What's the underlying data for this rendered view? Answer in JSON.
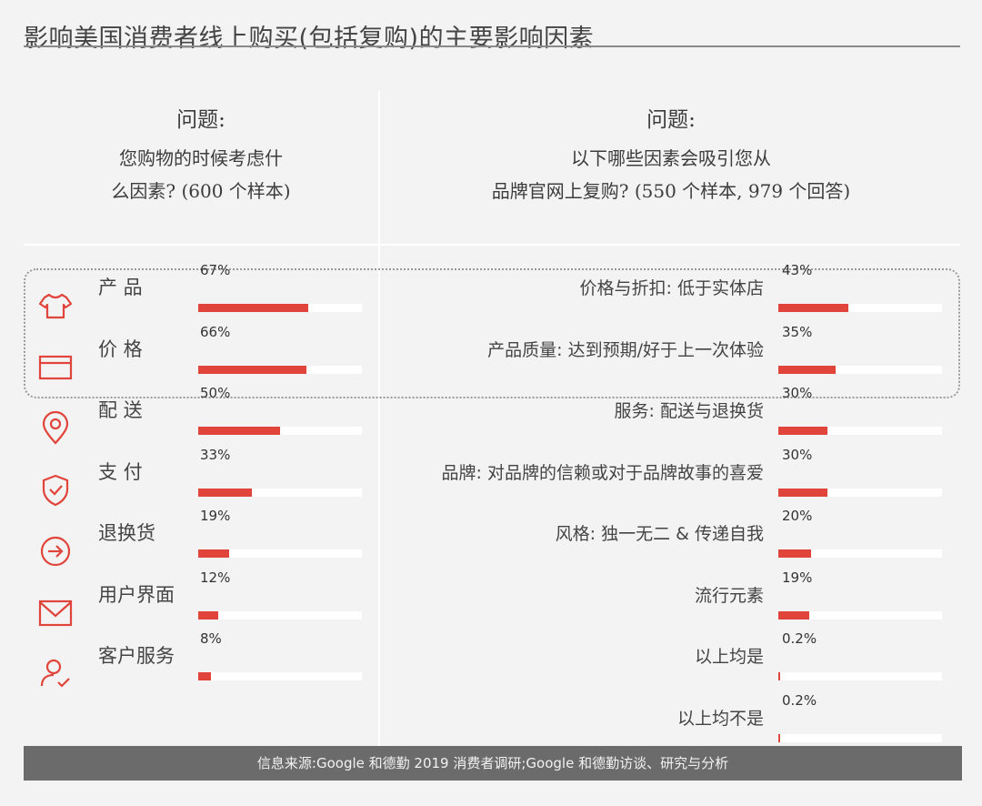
{
  "title": "影响美国消费者线上购买(包括复购)的主要影响因素",
  "colors": {
    "accent": "#e0443a",
    "background": "#f3f3f3",
    "footer_bg": "#6b6b6b"
  },
  "left_question": {
    "label": "问题:",
    "line1": "您购物的时候考虑什",
    "line2": "么因素? (600 个样本)"
  },
  "right_question": {
    "label": "问题:",
    "line1": "以下哪些因素会吸引您从",
    "line2": "品牌官网上复购? (550 个样本,  979 个回答)"
  },
  "left_factors": [
    {
      "label": "产 品",
      "pct_label": "67%",
      "value": 67,
      "icon": "tshirt-icon"
    },
    {
      "label": "价 格",
      "pct_label": "66%",
      "value": 66,
      "icon": "credit-card-icon"
    },
    {
      "label": "配 送",
      "pct_label": "50%",
      "value": 50,
      "icon": "location-pin-icon"
    },
    {
      "label": "支 付",
      "pct_label": "33%",
      "value": 33,
      "icon": "shield-check-icon"
    },
    {
      "label": "退换货",
      "pct_label": "19%",
      "value": 19,
      "icon": "arrow-circle-icon"
    },
    {
      "label": "用户界面",
      "pct_label": "12%",
      "value": 12,
      "icon": "envelope-icon"
    },
    {
      "label": "客户服务",
      "pct_label": "8%",
      "value": 8,
      "icon": "user-check-icon"
    }
  ],
  "right_factors": [
    {
      "label": "价格与折扣:  低于实体店",
      "pct_label": "43%",
      "value": 43
    },
    {
      "label": "产品质量:  达到预期/好于上一次体验",
      "pct_label": "35%",
      "value": 35
    },
    {
      "label": "服务:  配送与退换货",
      "pct_label": "30%",
      "value": 30
    },
    {
      "label": "品牌:  对品牌的信赖或对于品牌故事的喜爱",
      "pct_label": "30%",
      "value": 30
    },
    {
      "label": "风格:  独一无二 & 传递自我",
      "pct_label": "20%",
      "value": 20
    },
    {
      "label": "流行元素",
      "pct_label": "19%",
      "value": 19
    },
    {
      "label": "以上均是",
      "pct_label": "0.2%",
      "value": 0.2
    },
    {
      "label": "以上均不是",
      "pct_label": "0.2%",
      "value": 0.2
    }
  ],
  "footer": "信息来源:Google 和德勤 2019 消费者调研;Google 和德勤访谈、研究与分析",
  "chart_data": [
    {
      "type": "bar",
      "categories": [
        "产品",
        "价格",
        "配送",
        "支付",
        "退换货",
        "用户界面",
        "客户服务"
      ],
      "values": [
        67,
        66,
        50,
        33,
        19,
        12,
        8
      ],
      "title": "您购物的时候考虑什么因素? (600 个样本)",
      "xlabel": "",
      "ylabel": "",
      "ylim": [
        0,
        100
      ]
    },
    {
      "type": "bar",
      "categories": [
        "价格与折扣: 低于实体店",
        "产品质量: 达到预期/好于上一次体验",
        "服务: 配送与退换货",
        "品牌: 对品牌的信赖或对于品牌故事的喜爱",
        "风格: 独一无二 & 传递自我",
        "流行元素",
        "以上均是",
        "以上均不是"
      ],
      "values": [
        43,
        35,
        30,
        30,
        20,
        19,
        0.2,
        0.2
      ],
      "title": "以下哪些因素会吸引您从品牌官网上复购? (550 个样本, 979 个回答)",
      "xlabel": "",
      "ylabel": "",
      "ylim": [
        0,
        100
      ]
    }
  ]
}
